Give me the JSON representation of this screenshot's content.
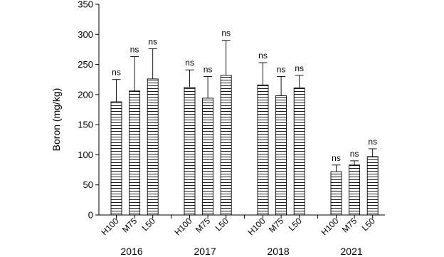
{
  "chart_data": {
    "type": "bar",
    "ylabel": "Boron (mg/kg)",
    "ylim": [
      0,
      350
    ],
    "yticks": [
      0,
      50,
      100,
      150,
      200,
      250,
      300,
      350
    ],
    "grid": false,
    "legend": "none",
    "bar_fill": "horizontal-hatch",
    "colors": {
      "bar_fill": "#ffffff",
      "bar_stroke": "#000000",
      "hatch": "#000000"
    },
    "groups": [
      {
        "label": "2016",
        "bars": [
          {
            "category": "H100",
            "value": 188,
            "error": 37,
            "sig": "ns"
          },
          {
            "category": "M75",
            "value": 206,
            "error": 57,
            "sig": "ns"
          },
          {
            "category": "L50",
            "value": 226,
            "error": 50,
            "sig": "ns"
          }
        ]
      },
      {
        "label": "2017",
        "bars": [
          {
            "category": "H100",
            "value": 212,
            "error": 29,
            "sig": "ns"
          },
          {
            "category": "M75",
            "value": 194,
            "error": 36,
            "sig": "ns"
          },
          {
            "category": "L50",
            "value": 232,
            "error": 58,
            "sig": "ns"
          }
        ]
      },
      {
        "label": "2018",
        "bars": [
          {
            "category": "H100",
            "value": 216,
            "error": 37,
            "sig": "ns"
          },
          {
            "category": "M75",
            "value": 198,
            "error": 32,
            "sig": "ns"
          },
          {
            "category": "L50",
            "value": 211,
            "error": 21,
            "sig": "ns"
          }
        ]
      },
      {
        "label": "2021",
        "bars": [
          {
            "category": "H100",
            "value": 72,
            "error": 11,
            "sig": "ns"
          },
          {
            "category": "M75",
            "value": 83,
            "error": 7,
            "sig": "ns"
          },
          {
            "category": "L50",
            "value": 97,
            "error": 13,
            "sig": "ns"
          }
        ]
      }
    ]
  }
}
